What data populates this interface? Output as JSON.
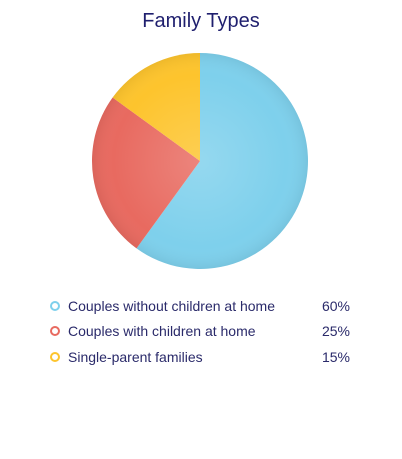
{
  "chart_data": {
    "type": "pie",
    "title": "Family Types",
    "categories": [
      "Couples without children at home",
      "Couples with children at home",
      "Single-parent families"
    ],
    "values": [
      60,
      25,
      15
    ],
    "value_labels": [
      "60%",
      "25%",
      "15%"
    ],
    "colors": [
      "#7ed0ec",
      "#e86a60",
      "#fdc42d"
    ],
    "legend_placement": "bottom"
  }
}
